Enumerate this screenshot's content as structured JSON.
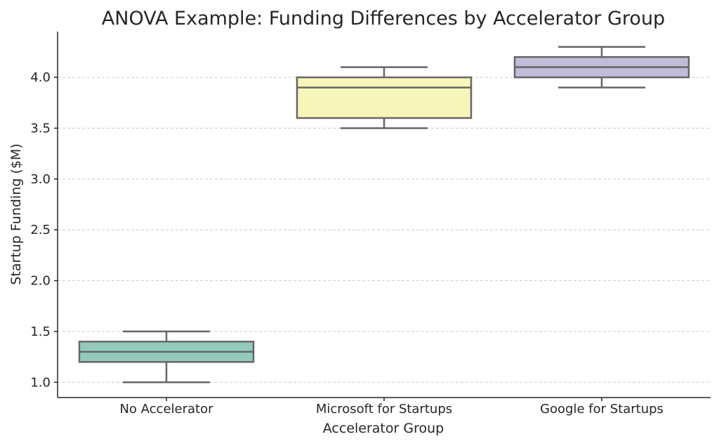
{
  "chart_data": {
    "type": "box",
    "title": "ANOVA Example: Funding Differences by Accelerator Group",
    "xlabel": "Accelerator Group",
    "ylabel": "Startup Funding ($M)",
    "ylim": [
      0.85,
      4.45
    ],
    "yticks": [
      1.0,
      1.5,
      2.0,
      2.5,
      3.0,
      3.5,
      4.0
    ],
    "ytick_labels": [
      "1.0",
      "1.5",
      "2.0",
      "2.5",
      "3.0",
      "3.5",
      "4.0"
    ],
    "grid": "horizontal",
    "categories": [
      "No Accelerator",
      "Microsoft for Startups",
      "Google for Startups"
    ],
    "boxes": [
      {
        "category": "No Accelerator",
        "whislo": 1.0,
        "q1": 1.2,
        "median": 1.3,
        "q3": 1.4,
        "whishi": 1.5,
        "color": "#93cabe"
      },
      {
        "category": "Microsoft for Startups",
        "whislo": 3.5,
        "q1": 3.6,
        "median": 3.9,
        "q3": 4.0,
        "whishi": 4.1,
        "color": "#f6f6bb"
      },
      {
        "category": "Google for Startups",
        "whislo": 3.9,
        "q1": 4.0,
        "median": 4.1,
        "q3": 4.2,
        "whishi": 4.3,
        "color": "#c1bcd9"
      }
    ]
  }
}
